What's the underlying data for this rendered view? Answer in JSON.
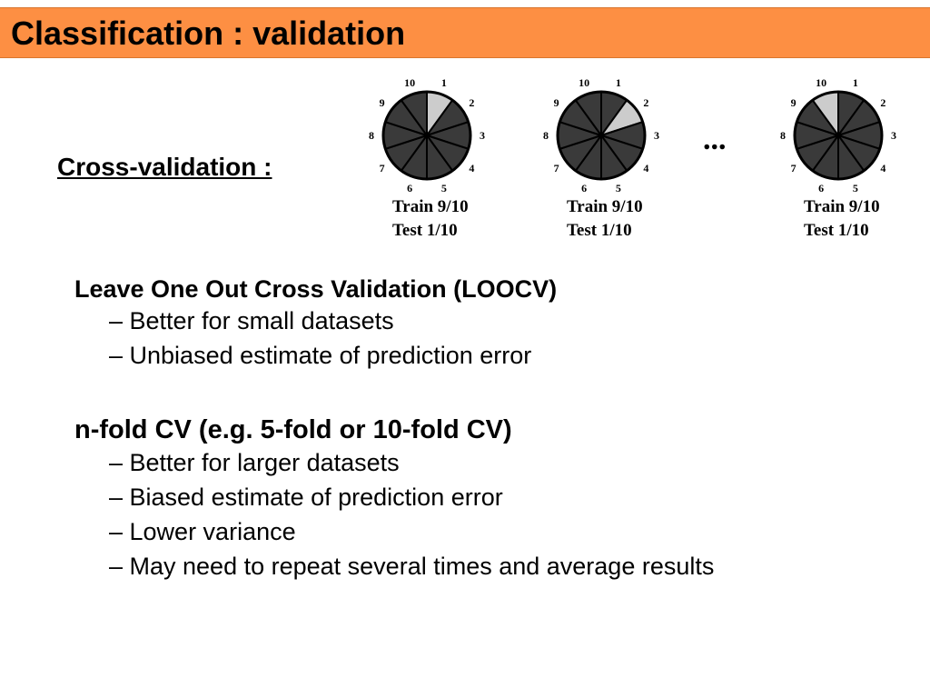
{
  "title": "Classification : validation",
  "cross_validation_label": "Cross-validation :",
  "folds": [
    {
      "numbers": [
        "1",
        "2",
        "3",
        "4",
        "5",
        "6",
        "7",
        "8",
        "9",
        "10"
      ],
      "test_segment": 1,
      "train": "Train 9/10",
      "test": "Test 1/10"
    },
    {
      "numbers": [
        "1",
        "2",
        "3",
        "4",
        "5",
        "6",
        "7",
        "8",
        "9",
        "10"
      ],
      "test_segment": 2,
      "train": "Train 9/10",
      "test": "Test 1/10"
    },
    {
      "numbers": [
        "1",
        "2",
        "3",
        "4",
        "5",
        "6",
        "7",
        "8",
        "9",
        "10"
      ],
      "test_segment": 10,
      "train": "Train 9/10",
      "test": "Test 1/10"
    }
  ],
  "ellipsis": "...",
  "sections": [
    {
      "heading": "Leave One Out Cross Validation (LOOCV)",
      "bullets": [
        "– Better for small datasets",
        "– Unbiased estimate of prediction error"
      ]
    },
    {
      "heading": "n-fold CV (e.g. 5-fold or 10-fold CV)",
      "bullets": [
        "– Better for larger datasets",
        "– Biased estimate of prediction error",
        "– Lower variance",
        "– May need to repeat several times and average results"
      ]
    }
  ],
  "colors": {
    "title_bar": "#fd8f43",
    "segment_dark": "#3a3a3a",
    "segment_test": "#cccccc"
  }
}
